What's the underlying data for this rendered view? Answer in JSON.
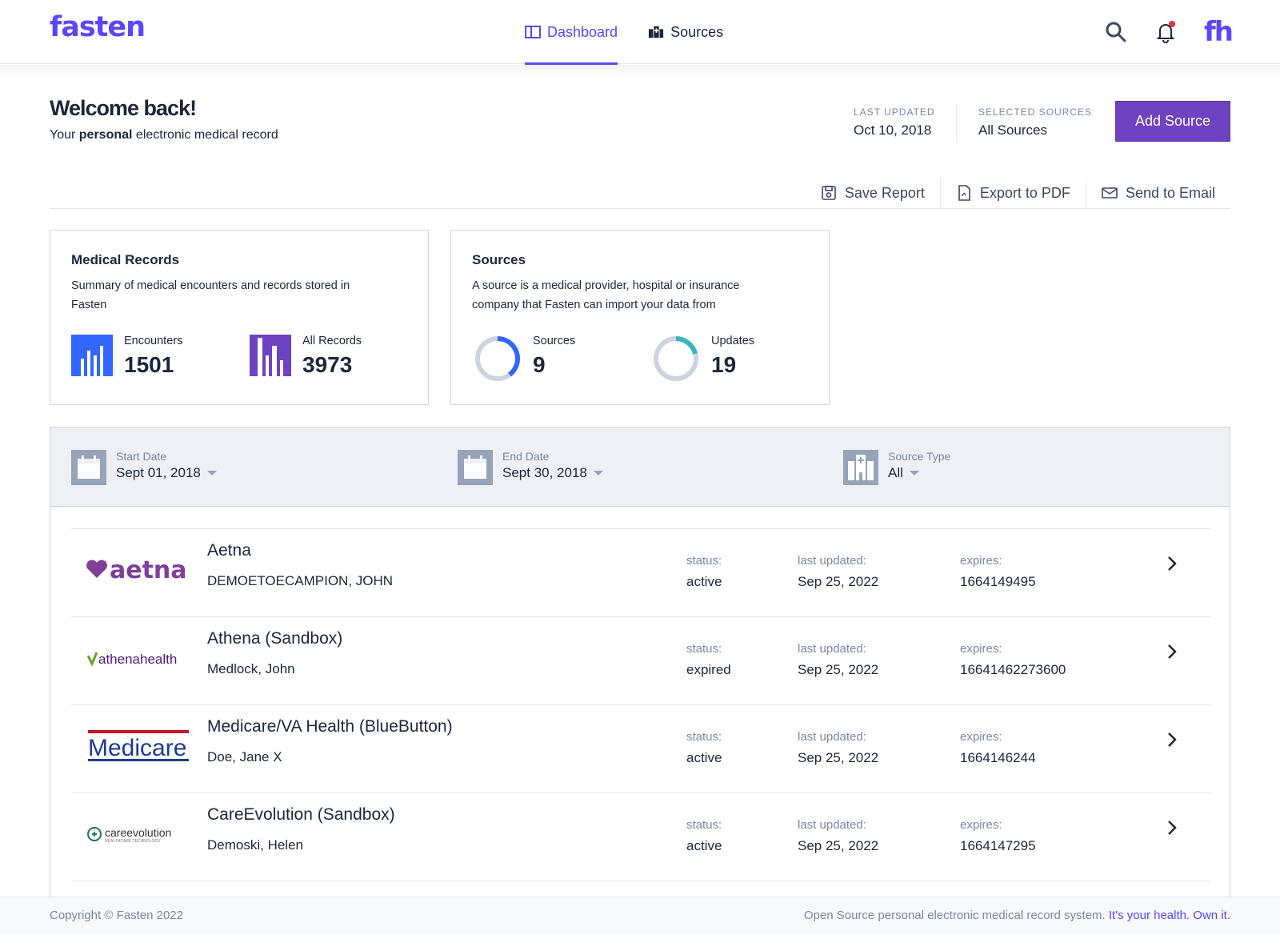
{
  "app": {
    "logo": "fasten",
    "avatar_initials": "fh"
  },
  "nav": {
    "dashboard": "Dashboard",
    "sources": "Sources"
  },
  "icons": {
    "search": "search-icon",
    "bell": "bell-icon",
    "accent": "#5b47fb",
    "button": "#6f42c1"
  },
  "welcome": {
    "title": "Welcome back!",
    "sub_prefix": "Your",
    "sub_bold": "personal",
    "sub_suffix": "electronic medical record"
  },
  "meta": {
    "last_updated_label": "LAST UPDATED",
    "last_updated_value": "Oct 10, 2018",
    "selected_sources_label": "SELECTED SOURCES",
    "selected_sources_value": "All Sources"
  },
  "add_source": "Add Source",
  "actions": {
    "save": "Save Report",
    "export": "Export to PDF",
    "email": "Send to Email"
  },
  "cards": {
    "medical": {
      "title": "Medical Records",
      "desc": "Summary of medical encounters and records stored in Fasten",
      "encounters_label": "Encounters",
      "encounters_value": "1501",
      "records_label": "All Records",
      "records_value": "3973"
    },
    "sources": {
      "title": "Sources",
      "desc": "A source is a medical provider, hospital or insurance company that Fasten can import your data from",
      "sources_label": "Sources",
      "sources_value": "9",
      "updates_label": "Updates",
      "updates_value": "19"
    }
  },
  "filters": {
    "start_label": "Start Date",
    "start_value": "Sept 01, 2018",
    "end_label": "End Date",
    "end_value": "Sept 30, 2018",
    "type_label": "Source Type",
    "type_value": "All"
  },
  "row_labels": {
    "status": "status:",
    "last_updated": "last updated:",
    "expires": "expires:"
  },
  "sources": [
    {
      "name": "Aetna",
      "patient": "DEMOETOECAMPION, JOHN",
      "status": "active",
      "last_updated": "Sep 25, 2022",
      "expires": "1664149495",
      "logo_text": "aetna"
    },
    {
      "name": "Athena (Sandbox)",
      "patient": "Medlock, John",
      "status": "expired",
      "last_updated": "Sep 25, 2022",
      "expires": "16641462273600",
      "logo_text": "athenahealth"
    },
    {
      "name": "Medicare/VA Health (BlueButton)",
      "patient": "Doe, Jane X",
      "status": "active",
      "last_updated": "Sep 25, 2022",
      "expires": "1664146244",
      "logo_text": "Medicare"
    },
    {
      "name": "CareEvolution (Sandbox)",
      "patient": "Demoski, Helen",
      "status": "active",
      "last_updated": "Sep 25, 2022",
      "expires": "1664147295",
      "logo_text": "careevolution",
      "logo_subtext": "HEALTHCARE TECHNOLOGY"
    }
  ],
  "footer": {
    "copyright": "Copyright © Fasten 2022",
    "tagline": "Open Source personal electronic medical record system.",
    "link": "It's your health. Own it."
  }
}
